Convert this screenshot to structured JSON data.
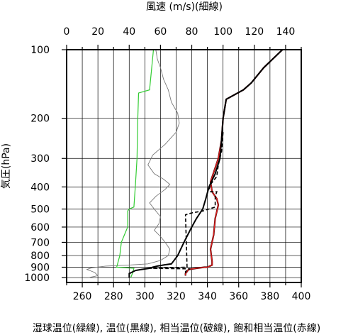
{
  "chart_data": {
    "type": "line",
    "top_axis_label": "風速 (m/s)(細線)",
    "bottom_axis_label": "湿球温位(緑線), 温位(黒線), 相当温位(破線), 飽和相当温位(赤線)",
    "ylabel": "気圧(hPa)",
    "x_bottom": {
      "min": 250,
      "max": 400,
      "ticks": [
        260,
        280,
        300,
        320,
        340,
        360,
        380,
        400
      ]
    },
    "x_top": {
      "min": 0,
      "max": 150,
      "ticks": [
        0,
        20,
        40,
        60,
        80,
        100,
        120,
        140
      ]
    },
    "y": {
      "scale": "log",
      "min": 100,
      "max": 1050,
      "ticks": [
        100,
        200,
        300,
        400,
        500,
        600,
        700,
        800,
        900,
        1000
      ]
    },
    "grid": true,
    "colors": {
      "wind": "#777777",
      "wet_bulb": "#33cc33",
      "theta": "#000000",
      "theta_e": "#000000",
      "theta_es": "#ee2222",
      "theta_es_outline": "#550000"
    },
    "series": [
      {
        "name": "風速",
        "axis": "top",
        "style": "thin",
        "points": [
          [
            57,
            100
          ],
          [
            58,
            110
          ],
          [
            60,
            120
          ],
          [
            62,
            135
          ],
          [
            65,
            150
          ],
          [
            67,
            170
          ],
          [
            71,
            190
          ],
          [
            72,
            210
          ],
          [
            70,
            230
          ],
          [
            63,
            260
          ],
          [
            55,
            290
          ],
          [
            52,
            320
          ],
          [
            56,
            350
          ],
          [
            62,
            370
          ],
          [
            66,
            390
          ],
          [
            63,
            410
          ],
          [
            57,
            440
          ],
          [
            53,
            470
          ],
          [
            56,
            500
          ],
          [
            60,
            540
          ],
          [
            59,
            580
          ],
          [
            56,
            620
          ],
          [
            60,
            660
          ],
          [
            63,
            700
          ],
          [
            66,
            750
          ],
          [
            65,
            800
          ],
          [
            60,
            840
          ],
          [
            52,
            870
          ],
          [
            40,
            880
          ],
          [
            25,
            890
          ],
          [
            16,
            905
          ],
          [
            13,
            920
          ],
          [
            18,
            950
          ],
          [
            20,
            980
          ],
          [
            14,
            1000
          ]
        ]
      },
      {
        "name": "湿球温位",
        "points": [
          [
            305.5,
            100
          ],
          [
            303,
            150
          ],
          [
            296,
            155
          ],
          [
            295.5,
            200
          ],
          [
            295,
            300
          ],
          [
            294,
            390
          ],
          [
            293,
            490
          ],
          [
            290,
            500
          ],
          [
            289,
            510
          ],
          [
            289,
            600
          ],
          [
            285,
            700
          ],
          [
            284,
            800
          ],
          [
            282,
            900
          ],
          [
            293,
            910
          ],
          [
            292,
            960
          ],
          [
            291,
            1000
          ]
        ]
      },
      {
        "name": "温位",
        "points": [
          [
            388,
            100
          ],
          [
            376,
            120
          ],
          [
            368,
            140
          ],
          [
            363,
            150
          ],
          [
            352,
            165
          ],
          [
            350,
            200
          ],
          [
            349,
            250
          ],
          [
            348,
            300
          ],
          [
            345,
            350
          ],
          [
            341,
            400
          ],
          [
            339,
            450
          ],
          [
            337,
            500
          ],
          [
            333,
            550
          ],
          [
            330,
            600
          ],
          [
            325,
            700
          ],
          [
            321,
            800
          ],
          [
            317,
            870
          ],
          [
            312,
            880
          ],
          [
            308,
            890
          ],
          [
            305,
            900
          ],
          [
            303,
            910
          ],
          [
            298,
            920
          ],
          [
            294,
            930
          ],
          [
            290,
            960
          ],
          [
            290,
            1000
          ]
        ]
      },
      {
        "name": "相当温位",
        "style": "dashed",
        "points": [
          [
            350,
            230
          ],
          [
            349,
            280
          ],
          [
            347,
            320
          ],
          [
            346,
            360
          ],
          [
            342,
            390
          ],
          [
            341,
            410
          ],
          [
            342,
            420
          ],
          [
            346,
            420
          ],
          [
            345,
            440
          ],
          [
            345,
            490
          ],
          [
            337,
            510
          ],
          [
            330,
            520
          ],
          [
            326,
            530
          ],
          [
            327,
            900
          ],
          [
            303,
            910
          ],
          [
            329,
            915
          ],
          [
            327,
            930
          ],
          [
            326,
            940
          ],
          [
            326,
            960
          ],
          [
            326,
            980
          ]
        ]
      },
      {
        "name": "飽和相当温位",
        "points": [
          [
            388,
            100
          ],
          [
            376,
            120
          ],
          [
            368,
            140
          ],
          [
            363,
            150
          ],
          [
            352,
            165
          ],
          [
            350,
            200
          ],
          [
            349,
            250
          ],
          [
            347,
            300
          ],
          [
            345,
            330
          ],
          [
            342,
            380
          ],
          [
            343,
            420
          ],
          [
            346,
            450
          ],
          [
            347,
            480
          ],
          [
            345,
            550
          ],
          [
            344,
            650
          ],
          [
            342,
            750
          ],
          [
            343,
            850
          ],
          [
            343,
            880
          ],
          [
            340,
            900
          ],
          [
            338,
            900
          ],
          [
            333,
            910
          ],
          [
            328,
            920
          ],
          [
            326,
            960
          ],
          [
            326,
            980
          ]
        ]
      }
    ]
  }
}
